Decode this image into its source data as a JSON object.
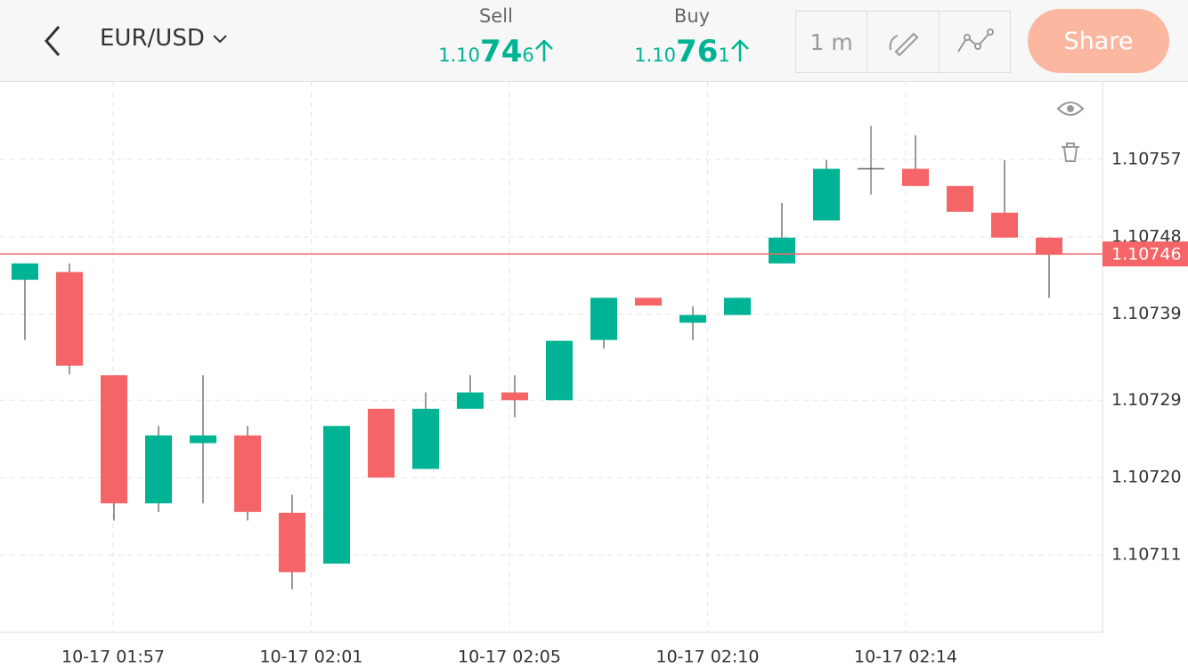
{
  "header": {
    "symbol": "EUR/USD",
    "sell": {
      "label": "Sell",
      "price_parts": [
        "1.10",
        "74",
        "6"
      ]
    },
    "buy": {
      "label": "Buy",
      "price_parts": [
        "1.10",
        "76",
        "1"
      ]
    },
    "interval": "1 m",
    "share": "Share"
  },
  "chart_data": {
    "type": "candlestick",
    "up_color": "#00b394",
    "down_color": "#f56467",
    "doji_color": "#666666",
    "time_labels": [
      "10-17 01:57",
      "10-17 02:01",
      "10-17 02:05",
      "10-17 02:10",
      "10-17 02:14"
    ],
    "ylim": [
      1.10702,
      1.10766
    ],
    "yticks": [
      1.10757,
      {
        "value": 1.10748,
        "label": "1.10748"
      },
      1.10739,
      1.10729,
      {
        "value": 1.1072,
        "label": "1.10720"
      },
      1.10711
    ],
    "grid": true,
    "current_price": 1.10746,
    "current_color": "#f56467",
    "candles": [
      {
        "open": 1.10743,
        "high": 1.107449,
        "low": 1.10736,
        "close": 1.107449
      },
      {
        "open": 1.107439,
        "high": 1.107449,
        "low": 1.10732,
        "close": 1.10733
      },
      {
        "open": 1.107319,
        "high": 1.107319,
        "low": 1.10715,
        "close": 1.10717
      },
      {
        "open": 1.10717,
        "high": 1.10726,
        "low": 1.10716,
        "close": 1.107249
      },
      {
        "open": 1.10724,
        "high": 1.107319,
        "low": 1.10717,
        "close": 1.107249
      },
      {
        "open": 1.107249,
        "high": 1.10726,
        "low": 1.10715,
        "close": 1.10716
      },
      {
        "open": 1.107159,
        "high": 1.10718,
        "low": 1.10707,
        "close": 1.10709
      },
      {
        "open": 1.1071,
        "high": 1.10726,
        "low": 1.1071,
        "close": 1.10726
      },
      {
        "open": 1.10728,
        "high": 1.10728,
        "low": 1.1072,
        "close": 1.1072
      },
      {
        "open": 1.10721,
        "high": 1.107299,
        "low": 1.10721,
        "close": 1.10728
      },
      {
        "open": 1.10728,
        "high": 1.107319,
        "low": 1.10728,
        "close": 1.107299
      },
      {
        "open": 1.107299,
        "high": 1.107319,
        "low": 1.10727,
        "close": 1.10729
      },
      {
        "open": 1.10729,
        "high": 1.107359,
        "low": 1.10729,
        "close": 1.107359
      },
      {
        "open": 1.10736,
        "high": 1.107409,
        "low": 1.10735,
        "close": 1.107409
      },
      {
        "open": 1.107409,
        "high": 1.107409,
        "low": 1.1074,
        "close": 1.1074
      },
      {
        "open": 1.10738,
        "high": 1.107399,
        "low": 1.10736,
        "close": 1.107389
      },
      {
        "open": 1.107389,
        "high": 1.107409,
        "low": 1.107389,
        "close": 1.107409
      },
      {
        "open": 1.107449,
        "high": 1.107519,
        "low": 1.107449,
        "close": 1.107479
      },
      {
        "open": 1.107499,
        "high": 1.107569,
        "low": 1.107499,
        "close": 1.107559
      },
      {
        "open": 1.107559,
        "high": 1.107609,
        "low": 1.107529,
        "close": 1.107559
      },
      {
        "open": 1.107559,
        "high": 1.107598,
        "low": 1.107539,
        "close": 1.107539
      },
      {
        "open": 1.107539,
        "high": 1.107539,
        "low": 1.107509,
        "close": 1.107509
      },
      {
        "open": 1.107508,
        "high": 1.107569,
        "low": 1.107479,
        "close": 1.107479
      },
      {
        "open": 1.107479,
        "high": 1.107479,
        "low": 1.107409,
        "close": 1.107459
      }
    ]
  }
}
